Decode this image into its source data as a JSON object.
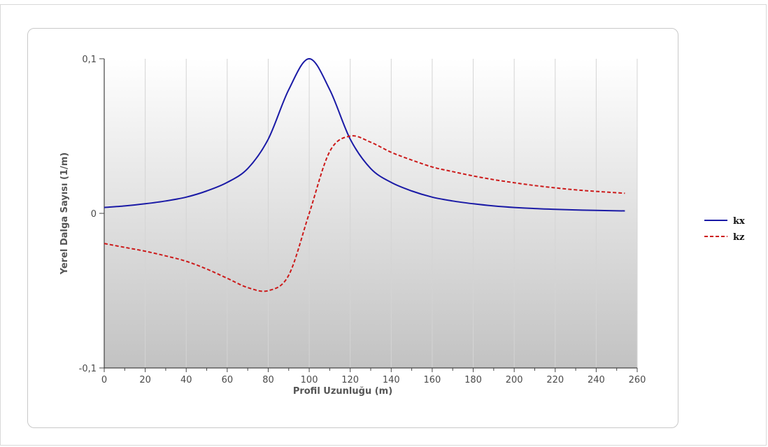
{
  "chart_data": {
    "type": "line",
    "title": "",
    "xlabel": "Profil Uzunluğu (m)",
    "ylabel": "Yerel Dalga Sayısı (1/m)",
    "xlim": [
      0,
      260
    ],
    "ylim": [
      -0.1,
      0.1
    ],
    "x_ticks": [
      "0",
      "20",
      "40",
      "60",
      "80",
      "100",
      "120",
      "140",
      "160",
      "180",
      "200",
      "220",
      "240",
      "260"
    ],
    "y_ticks": [
      "-0,1",
      "0",
      "0,1"
    ],
    "grid": "vertical",
    "legend_position": "right",
    "x": [
      0,
      10,
      20,
      30,
      40,
      50,
      60,
      70,
      80,
      90,
      100,
      110,
      120,
      130,
      140,
      150,
      160,
      170,
      180,
      190,
      200,
      210,
      220,
      230,
      240,
      254
    ],
    "series": [
      {
        "name": "kx",
        "color": "#1a1aa6",
        "style": "solid",
        "values": [
          0.0038,
          0.0048,
          0.0062,
          0.008,
          0.0105,
          0.0145,
          0.02,
          0.029,
          0.048,
          0.08,
          0.1,
          0.08,
          0.048,
          0.029,
          0.02,
          0.0145,
          0.0105,
          0.008,
          0.0062,
          0.0048,
          0.0038,
          0.0031,
          0.0026,
          0.0022,
          0.0019,
          0.0016
        ]
      },
      {
        "name": "kz",
        "color": "#cc1a1a",
        "style": "dashed",
        "values": [
          -0.0195,
          -0.022,
          -0.0245,
          -0.0275,
          -0.031,
          -0.036,
          -0.042,
          -0.048,
          -0.05,
          -0.04,
          0.0,
          0.04,
          0.05,
          0.046,
          0.0395,
          0.0345,
          0.03,
          0.027,
          0.0242,
          0.0218,
          0.0198,
          0.018,
          0.0165,
          0.0152,
          0.0142,
          0.013
        ]
      }
    ]
  }
}
